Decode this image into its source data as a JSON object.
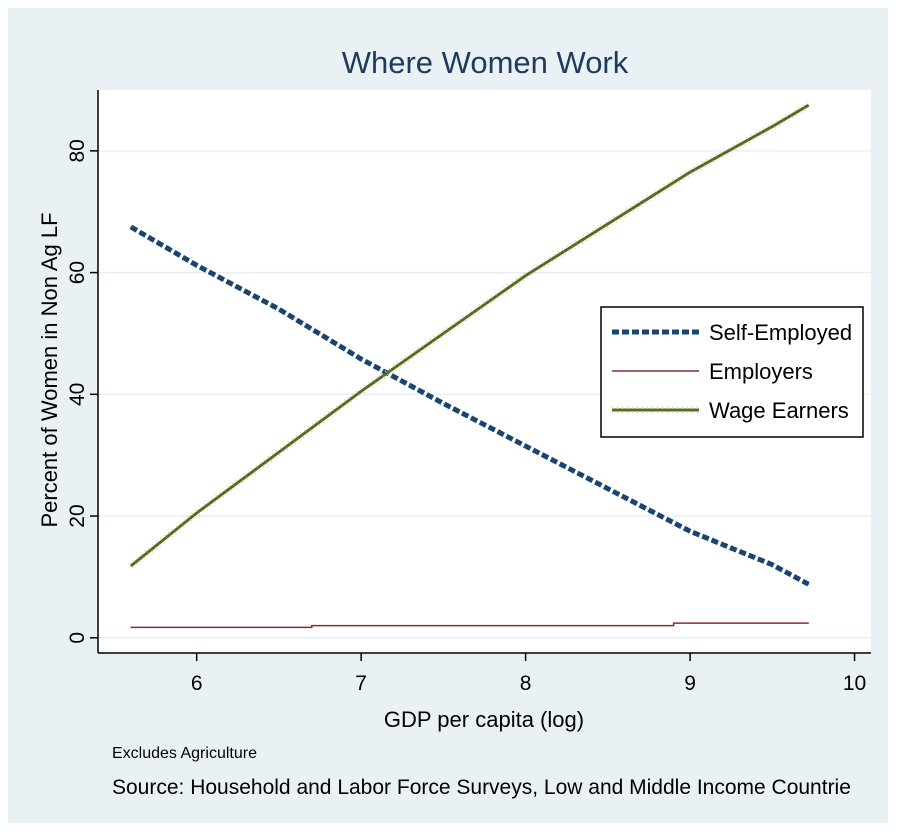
{
  "chart_data": {
    "type": "line",
    "title": "Where Women Work",
    "xlabel": "GDP per capita (log)",
    "ylabel": "Percent of Women in Non Ag LF",
    "xlim": [
      5.4,
      10.1
    ],
    "ylim": [
      -2.5,
      90
    ],
    "xticks": [
      6,
      7,
      8,
      9,
      10
    ],
    "yticks": [
      0,
      20,
      40,
      60,
      80
    ],
    "grid": true,
    "legend_position": "right",
    "notes": [
      "Excludes Agriculture",
      "Source: Household and Labor Force Surveys, Low and Middle Income Countrie"
    ],
    "series": [
      {
        "name": "Self-Employed",
        "color": "#1a4472",
        "style": "dashed-thick",
        "x": [
          5.6,
          6.0,
          6.5,
          7.0,
          7.5,
          8.0,
          8.5,
          9.0,
          9.5,
          9.72
        ],
        "y": [
          67.5,
          61.2,
          54.0,
          45.8,
          38.5,
          31.5,
          24.5,
          17.5,
          12.0,
          8.8
        ]
      },
      {
        "name": "Employers",
        "color": "#8a2a2a",
        "style": "solid-thin",
        "x": [
          5.6,
          6.7,
          6.7,
          8.9,
          8.9,
          9.72
        ],
        "y": [
          1.7,
          1.7,
          2.0,
          2.0,
          2.4,
          2.4
        ]
      },
      {
        "name": "Wage Earners",
        "color": "#556b1f",
        "style": "hatched",
        "x": [
          5.6,
          6.0,
          6.5,
          7.0,
          7.5,
          8.0,
          8.5,
          9.0,
          9.5,
          9.72
        ],
        "y": [
          11.8,
          20.5,
          30.5,
          40.5,
          50.0,
          59.5,
          68.0,
          76.5,
          84.0,
          87.5
        ]
      }
    ]
  }
}
